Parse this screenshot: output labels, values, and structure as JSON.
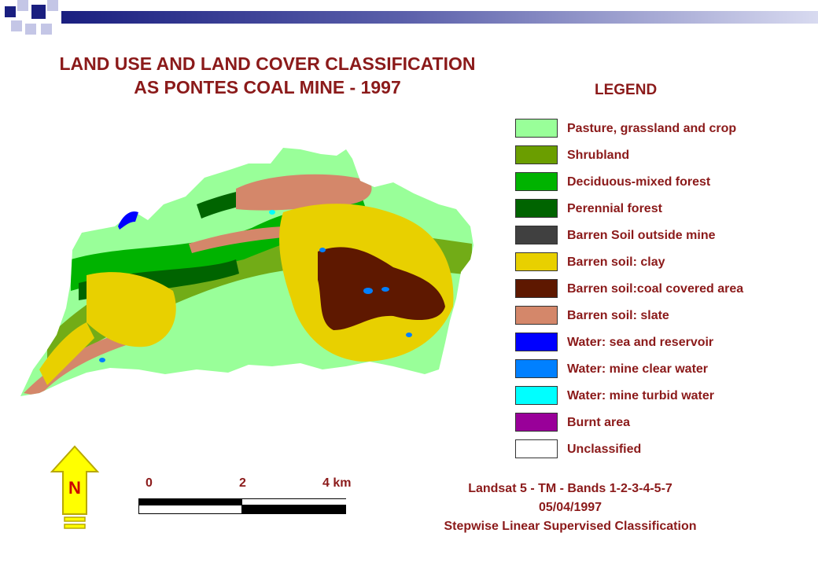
{
  "title": {
    "line1": "LAND USE AND LAND COVER CLASSIFICATION",
    "line2": "AS PONTES COAL MINE - 1997"
  },
  "legend": {
    "title": "LEGEND",
    "items": [
      {
        "label": "Pasture, grassland and crop",
        "color": "#99ff99"
      },
      {
        "label": "Shrubland",
        "color": "#6b9e00"
      },
      {
        "label": "Deciduous-mixed forest",
        "color": "#00b300"
      },
      {
        "label": "Perennial forest",
        "color": "#006400"
      },
      {
        "label": "Barren Soil outside mine",
        "color": "#404040"
      },
      {
        "label": "Barren soil: clay",
        "color": "#e8d000"
      },
      {
        "label": "Barren soil:coal covered area",
        "color": "#5e1800"
      },
      {
        "label": "Barren soil: slate",
        "color": "#d4876a"
      },
      {
        "label": "Water: sea and reservoir",
        "color": "#0000ff"
      },
      {
        "label": "Water: mine clear water",
        "color": "#0080ff"
      },
      {
        "label": "Water: mine turbid water",
        "color": "#00ffff"
      },
      {
        "label": "Burnt area",
        "color": "#990099"
      },
      {
        "label": "Unclassified",
        "color": "#ffffff"
      }
    ]
  },
  "north_arrow": {
    "label": "N"
  },
  "scale_bar": {
    "labels": [
      "0",
      "2",
      "4 km"
    ]
  },
  "source": {
    "line1": "Landsat 5 - TM - Bands 1-2-3-4-5-7",
    "line2": "05/04/1997",
    "line3": "Stepwise Linear Supervised Classification"
  }
}
